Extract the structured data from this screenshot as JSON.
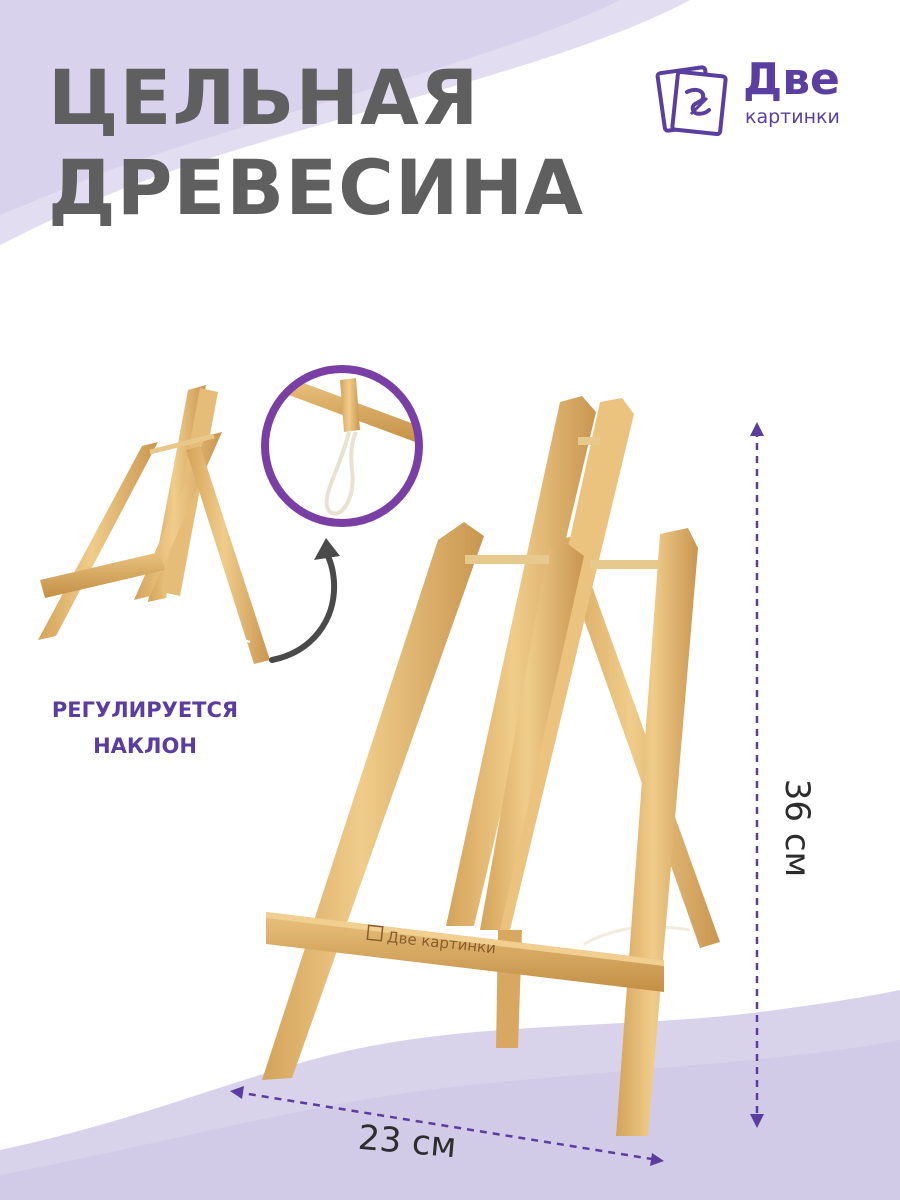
{
  "headline": {
    "line1": "ЦЕЛЬНАЯ",
    "line2": "ДРЕВЕСИНА"
  },
  "brand": {
    "name": "Две",
    "sub": "картинки",
    "engraving": "Две картинки",
    "color": "#5b3fa0"
  },
  "feature": {
    "line1": "РЕГУЛИРУЕТСЯ",
    "line2": "НАКЛОН",
    "color": "#5a3d9e"
  },
  "dimensions": {
    "width": "23 см",
    "height": "36 см"
  },
  "colors": {
    "headline": "#5f5f60",
    "wave": "#d8d3ea",
    "wood": "#e3b872",
    "wood_dark": "#c18f45",
    "arrow": "#4a4a4a",
    "circle_ring": "#7a3fa5"
  },
  "icons": [
    "brand-logo-icon",
    "curved-arrow-icon",
    "magnifier-circle-icon",
    "easel-small-icon",
    "easel-main-icon"
  ]
}
